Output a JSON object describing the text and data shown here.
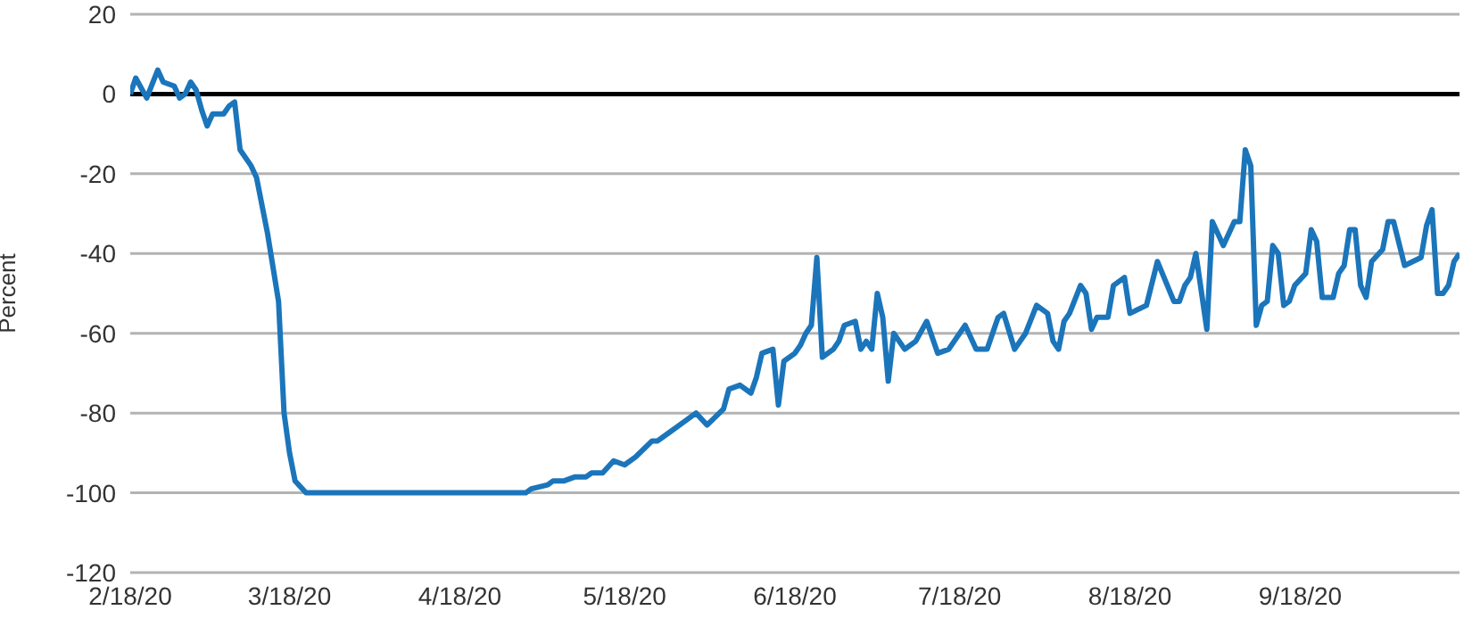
{
  "chart_data": {
    "type": "line",
    "ylabel": "Percent",
    "x": [
      "2020-02-18",
      "2020-02-19",
      "2020-02-21",
      "2020-02-23",
      "2020-02-24",
      "2020-02-26",
      "2020-02-27",
      "2020-02-28",
      "2020-02-29",
      "2020-03-01",
      "2020-03-02",
      "2020-03-03",
      "2020-03-04",
      "2020-03-06",
      "2020-03-07",
      "2020-03-08",
      "2020-03-09",
      "2020-03-11",
      "2020-03-12",
      "2020-03-14",
      "2020-03-16",
      "2020-03-17",
      "2020-03-18",
      "2020-03-19",
      "2020-03-21",
      "2020-04-03",
      "2020-04-18",
      "2020-04-30",
      "2020-05-01",
      "2020-05-04",
      "2020-05-05",
      "2020-05-07",
      "2020-05-09",
      "2020-05-11",
      "2020-05-12",
      "2020-05-14",
      "2020-05-16",
      "2020-05-18",
      "2020-05-20",
      "2020-05-23",
      "2020-05-24",
      "2020-05-26",
      "2020-05-28",
      "2020-05-30",
      "2020-05-31",
      "2020-06-02",
      "2020-06-05",
      "2020-06-06",
      "2020-06-08",
      "2020-06-10",
      "2020-06-11",
      "2020-06-12",
      "2020-06-14",
      "2020-06-15",
      "2020-06-16",
      "2020-06-18",
      "2020-06-19",
      "2020-06-20",
      "2020-06-21",
      "2020-06-22",
      "2020-06-23",
      "2020-06-25",
      "2020-06-26",
      "2020-06-27",
      "2020-06-29",
      "2020-06-30",
      "2020-07-01",
      "2020-07-02",
      "2020-07-03",
      "2020-07-04",
      "2020-07-05",
      "2020-07-06",
      "2020-07-08",
      "2020-07-10",
      "2020-07-12",
      "2020-07-14",
      "2020-07-16",
      "2020-07-19",
      "2020-07-21",
      "2020-07-23",
      "2020-07-25",
      "2020-07-26",
      "2020-07-28",
      "2020-07-30",
      "2020-08-01",
      "2020-08-03",
      "2020-08-04",
      "2020-08-05",
      "2020-08-06",
      "2020-08-07",
      "2020-08-09",
      "2020-08-10",
      "2020-08-11",
      "2020-08-12",
      "2020-08-14",
      "2020-08-15",
      "2020-08-17",
      "2020-08-18",
      "2020-08-21",
      "2020-08-23",
      "2020-08-26",
      "2020-08-27",
      "2020-08-28",
      "2020-08-29",
      "2020-08-30",
      "2020-09-01",
      "2020-09-02",
      "2020-09-04",
      "2020-09-06",
      "2020-09-07",
      "2020-09-08",
      "2020-09-09",
      "2020-09-10",
      "2020-09-11",
      "2020-09-12",
      "2020-09-13",
      "2020-09-14",
      "2020-09-15",
      "2020-09-16",
      "2020-09-17",
      "2020-09-19",
      "2020-09-20",
      "2020-09-21",
      "2020-09-22",
      "2020-09-24",
      "2020-09-25",
      "2020-09-26",
      "2020-09-27",
      "2020-09-28",
      "2020-09-29",
      "2020-09-30",
      "2020-10-01",
      "2020-10-03",
      "2020-10-04",
      "2020-10-05",
      "2020-10-07",
      "2020-10-10",
      "2020-10-11",
      "2020-10-12",
      "2020-10-13",
      "2020-10-14",
      "2020-10-15",
      "2020-10-16",
      "2020-10-17"
    ],
    "series": [
      {
        "color": "#1b75bb",
        "values": [
          0,
          4,
          -1,
          6,
          3,
          2,
          -1,
          0,
          3,
          1,
          -4,
          -8,
          -5,
          -5,
          -3,
          -2,
          -14,
          -18,
          -21,
          -35,
          -52,
          -80,
          -90,
          -97,
          -100,
          -100,
          -100,
          -100,
          -99,
          -98,
          -97,
          -97,
          -96,
          -96,
          -95,
          -95,
          -92,
          -93,
          -91,
          -87,
          -87,
          -85,
          -83,
          -81,
          -80,
          -83,
          -79,
          -74,
          -73,
          -75,
          -71,
          -65,
          -64,
          -78,
          -67,
          -65,
          -63,
          -60,
          -58,
          -41,
          -66,
          -64,
          -62,
          -58,
          -57,
          -64,
          -62,
          -64,
          -50,
          -56,
          -72,
          -60,
          -64,
          -62,
          -57,
          -65,
          -64,
          -58,
          -64,
          -64,
          -56,
          -55,
          -64,
          -60,
          -53,
          -55,
          -62,
          -64,
          -57,
          -55,
          -48,
          -50,
          -59,
          -56,
          -56,
          -48,
          -46,
          -55,
          -53,
          -42,
          -52,
          -52,
          -48,
          -46,
          -40,
          -59,
          -32,
          -38,
          -32,
          -32,
          -14,
          -18,
          -58,
          -53,
          -52,
          -38,
          -40,
          -53,
          -52,
          -48,
          -45,
          -34,
          -37,
          -51,
          -51,
          -45,
          -43,
          -34,
          -34,
          -48,
          -51,
          -42,
          -39,
          -32,
          -32,
          -43,
          -41,
          -33,
          -29,
          -50,
          -50,
          -48,
          -42,
          -40
        ]
      }
    ],
    "xlim": [
      "2020-02-18",
      "2020-10-17"
    ],
    "xticks": [
      {
        "value": "2020-02-18",
        "label": "2/18/20"
      },
      {
        "value": "2020-03-18",
        "label": "3/18/20"
      },
      {
        "value": "2020-04-18",
        "label": "4/18/20"
      },
      {
        "value": "2020-05-18",
        "label": "5/18/20"
      },
      {
        "value": "2020-06-18",
        "label": "6/18/20"
      },
      {
        "value": "2020-07-18",
        "label": "7/18/20"
      },
      {
        "value": "2020-08-18",
        "label": "8/18/20"
      },
      {
        "value": "2020-09-18",
        "label": "9/18/20"
      }
    ],
    "ylim": [
      -120,
      20
    ],
    "yticks": [
      -120,
      -100,
      -80,
      -60,
      -40,
      -20,
      0,
      20
    ],
    "grid": "y",
    "marker": "none",
    "line_style": "solid",
    "ref_lines": [
      {
        "axis": "y",
        "value": 0,
        "color": "#000000"
      }
    ]
  }
}
